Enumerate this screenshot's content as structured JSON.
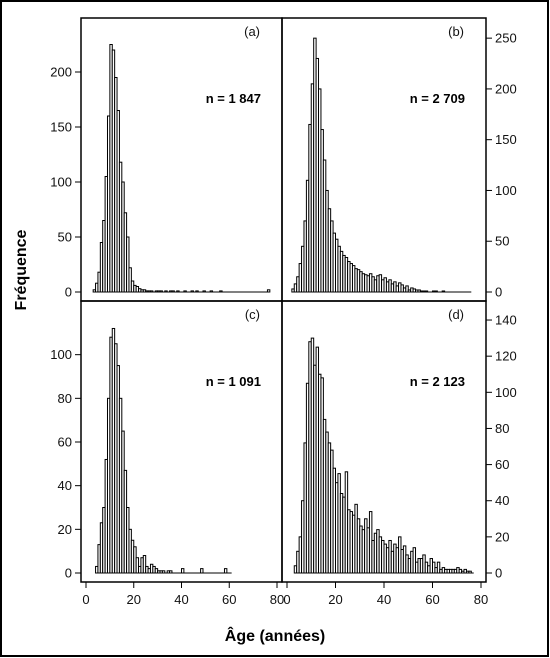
{
  "figure": {
    "ylabel": "Fréquence",
    "xlabel": "Âge (années)"
  },
  "chart_data": [
    {
      "type": "bar",
      "panel": "(a)",
      "n_label": "n = 1 847",
      "ylabel": "Fréquence",
      "xlabel": "Âge (années)",
      "xlim": [
        0,
        80
      ],
      "ylim": [
        0,
        240
      ],
      "xticks": [
        "0",
        "20",
        "40",
        "60",
        "80"
      ],
      "yticks": [
        "0",
        "50",
        "100",
        "150",
        "200"
      ],
      "y_axis_side": "left",
      "bin_start": 3,
      "bin_width": 1,
      "values": [
        2,
        8,
        18,
        45,
        65,
        105,
        160,
        225,
        220,
        195,
        165,
        118,
        100,
        72,
        50,
        22,
        10,
        6,
        5,
        3,
        2,
        2,
        1,
        1,
        1,
        0,
        1,
        1,
        1,
        0,
        1,
        0,
        1,
        1,
        0,
        1,
        0,
        0,
        1,
        0,
        0,
        1,
        0,
        1,
        0,
        0,
        1,
        0,
        0,
        1,
        0,
        0,
        0,
        1,
        0,
        0,
        0,
        0,
        0,
        0,
        0,
        0,
        0,
        0,
        0,
        0,
        0,
        0,
        0,
        0,
        0,
        0,
        0,
        2
      ]
    },
    {
      "type": "bar",
      "panel": "(b)",
      "n_label": "n = 2 709",
      "ylabel": "Fréquence",
      "xlabel": "Âge (années)",
      "xlim": [
        0,
        80
      ],
      "ylim": [
        0,
        260
      ],
      "xticks": [
        "0",
        "20",
        "40",
        "60",
        "80"
      ],
      "yticks": [
        "0",
        "50",
        "100",
        "150",
        "200",
        "250"
      ],
      "y_axis_side": "right",
      "bin_start": 2,
      "bin_width": 1,
      "values": [
        3,
        8,
        15,
        28,
        45,
        70,
        110,
        165,
        205,
        250,
        230,
        200,
        160,
        130,
        100,
        82,
        70,
        58,
        52,
        45,
        40,
        36,
        34,
        30,
        28,
        26,
        23,
        22,
        20,
        18,
        17,
        16,
        18,
        15,
        12,
        16,
        17,
        12,
        14,
        10,
        12,
        8,
        10,
        6,
        9,
        7,
        4,
        6,
        2,
        4,
        3,
        2,
        2,
        1,
        1,
        1,
        0,
        0,
        1,
        1,
        0,
        0,
        1,
        0,
        0,
        0,
        0,
        0,
        0,
        0,
        0,
        0,
        0,
        0
      ]
    },
    {
      "type": "bar",
      "panel": "(c)",
      "n_label": "n = 1 091",
      "ylabel": "Fréquence",
      "xlabel": "Âge (années)",
      "xlim": [
        0,
        80
      ],
      "ylim": [
        0,
        120
      ],
      "xticks": [
        "0",
        "20",
        "40",
        "60",
        "80"
      ],
      "yticks": [
        "0",
        "20",
        "40",
        "60",
        "80",
        "100"
      ],
      "y_axis_side": "left",
      "bin_start": 4,
      "bin_width": 1,
      "values": [
        3,
        13,
        23,
        30,
        52,
        80,
        108,
        112,
        105,
        95,
        80,
        65,
        47,
        30,
        20,
        15,
        12,
        7,
        3,
        7,
        8,
        3,
        2,
        4,
        3,
        2,
        1,
        1,
        1,
        0,
        1,
        1,
        0,
        0,
        0,
        0,
        2,
        0,
        0,
        0,
        0,
        0,
        0,
        0,
        2,
        0,
        0,
        0,
        0,
        0,
        0,
        0,
        0,
        0,
        2,
        0,
        0
      ]
    },
    {
      "type": "bar",
      "panel": "(d)",
      "n_label": "n = 2 123",
      "ylabel": "Fréquence",
      "xlabel": "Âge (années)",
      "xlim": [
        0,
        80
      ],
      "ylim": [
        0,
        145
      ],
      "xticks": [
        "0",
        "20",
        "40",
        "60",
        "80"
      ],
      "yticks": [
        "0",
        "20",
        "40",
        "60",
        "80",
        "100",
        "120",
        "140"
      ],
      "y_axis_side": "right",
      "bin_start": 3,
      "bin_width": 1,
      "values": [
        4,
        12,
        20,
        40,
        72,
        105,
        128,
        130,
        115,
        125,
        110,
        108,
        85,
        78,
        72,
        68,
        58,
        50,
        55,
        44,
        42,
        56,
        35,
        34,
        32,
        38,
        30,
        26,
        24,
        30,
        25,
        34,
        18,
        22,
        24,
        20,
        18,
        16,
        14,
        18,
        12,
        16,
        14,
        20,
        13,
        15,
        10,
        8,
        12,
        14,
        6,
        8,
        8,
        10,
        6,
        4,
        8,
        6,
        3,
        6,
        2,
        3,
        2,
        2,
        2,
        2,
        2,
        3,
        2,
        1,
        2,
        1,
        1,
        0
      ]
    }
  ]
}
